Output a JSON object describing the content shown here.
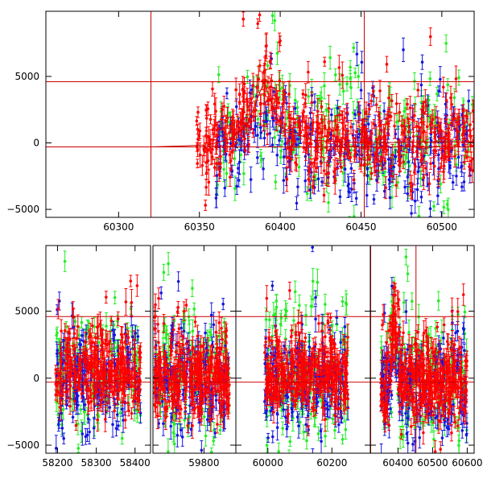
{
  "colors": {
    "green": "#22ee22",
    "blue": "#1515e0",
    "red": "#ff0000",
    "frame": "#000000",
    "refline": "#cc0000"
  },
  "chart_data": [
    {
      "type": "scatter",
      "panel": "top",
      "x_range": [
        60255,
        60520
      ],
      "y_range": [
        -5600,
        9900
      ],
      "x_ticks": [
        60300,
        60350,
        60400,
        60450,
        60500
      ],
      "y_ticks": [
        -5000,
        0,
        5000
      ],
      "grid": false,
      "error_bars": true,
      "h_lines": [
        4600,
        -300
      ],
      "v_lines": [
        60320,
        60452
      ],
      "model_curve": [
        [
          60255,
          -300
        ],
        [
          60320,
          -300
        ],
        [
          60340,
          -230
        ],
        [
          60355,
          -150
        ],
        [
          60370,
          300
        ],
        [
          60380,
          1500
        ],
        [
          60390,
          4600
        ],
        [
          60400,
          1200
        ],
        [
          60420,
          200
        ],
        [
          60450,
          0
        ],
        [
          60520,
          100
        ]
      ],
      "series": [
        {
          "color": "green",
          "x_range": [
            60360,
            60520
          ],
          "y_center": 300,
          "spread": 2400,
          "n": 240,
          "bump": {
            "x": 60390,
            "amp": 3400,
            "w": 10
          }
        },
        {
          "color": "blue",
          "x_range": [
            60360,
            60520
          ],
          "y_center": -700,
          "spread": 1900,
          "n": 300,
          "bump": {
            "x": 60390,
            "amp": 3000,
            "w": 10
          }
        },
        {
          "color": "red",
          "x_range": [
            60348,
            60520
          ],
          "y_center": 300,
          "spread": 1500,
          "n": 520,
          "bump": {
            "x": 60390,
            "amp": 4200,
            "w": 11
          }
        }
      ]
    },
    {
      "type": "scatter",
      "panel": "bottom",
      "broken_axis": true,
      "y_range": [
        -5600,
        9900
      ],
      "y_ticks": [
        -5000,
        0,
        5000
      ],
      "grid": false,
      "error_bars": true,
      "h_lines": [
        4600,
        -300
      ],
      "segments": [
        {
          "x_range": [
            58170,
            58440
          ],
          "x_ticks": [
            58200,
            58300,
            58400
          ],
          "data_x_range": [
            58195,
            58415
          ],
          "series": [
            {
              "color": "green",
              "y_center": 0,
              "spread": 2300,
              "n": 140
            },
            {
              "color": "blue",
              "y_center": 200,
              "spread": 2100,
              "n": 170
            },
            {
              "color": "red",
              "y_center": 700,
              "spread": 1500,
              "n": 300
            }
          ]
        },
        {
          "x_range": [
            59640,
            59900
          ],
          "x_ticks": [
            59800
          ],
          "data_x_range": [
            59645,
            59880
          ],
          "series": [
            {
              "color": "green",
              "y_center": 300,
              "spread": 2300,
              "n": 140
            },
            {
              "color": "blue",
              "y_center": -200,
              "spread": 2100,
              "n": 170
            },
            {
              "color": "red",
              "y_center": 0,
              "spread": 1500,
              "n": 320
            }
          ]
        },
        {
          "x_range": [
            59900,
            60320
          ],
          "x_ticks": [
            60000,
            60200
          ],
          "data_x_range": [
            59990,
            60250
          ],
          "series": [
            {
              "color": "green",
              "y_center": 300,
              "spread": 2300,
              "n": 160
            },
            {
              "color": "blue",
              "y_center": -600,
              "spread": 2000,
              "n": 190
            },
            {
              "color": "red",
              "y_center": 200,
              "spread": 1500,
              "n": 340
            }
          ]
        },
        {
          "x_range": [
            60320,
            60620
          ],
          "x_ticks": [
            60400,
            60500,
            60600
          ],
          "data_x_range": [
            60350,
            60600
          ],
          "v_lines": [
            60320,
            60452
          ],
          "series": [
            {
              "color": "green",
              "y_center": 300,
              "spread": 2300,
              "n": 160,
              "bump": {
                "x": 60390,
                "amp": 3400,
                "w": 10
              }
            },
            {
              "color": "blue",
              "y_center": -700,
              "spread": 2000,
              "n": 190,
              "bump": {
                "x": 60390,
                "amp": 3000,
                "w": 10
              }
            },
            {
              "color": "red",
              "y_center": 0,
              "spread": 1600,
              "n": 380,
              "bump": {
                "x": 60390,
                "amp": 4000,
                "w": 11
              }
            }
          ]
        }
      ]
    }
  ]
}
